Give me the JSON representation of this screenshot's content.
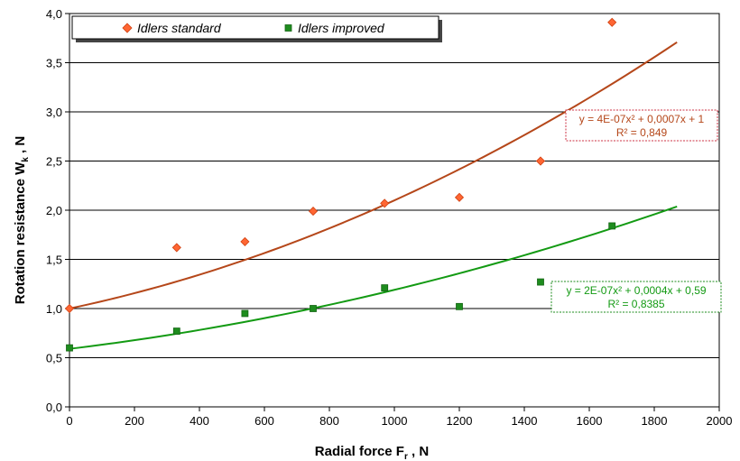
{
  "chart_data": {
    "type": "scatter",
    "xlabel_main": "Radial force F",
    "xlabel_sub": "r",
    "xlabel_tail": " , N",
    "ylabel_main": "Rotation resistance W",
    "ylabel_sub": "k",
    "ylabel_tail": " , N",
    "xlim": [
      0,
      2000
    ],
    "ylim": [
      0,
      4
    ],
    "x_ticks": [
      0,
      200,
      400,
      600,
      800,
      1000,
      1200,
      1400,
      1600,
      1800,
      2000
    ],
    "y_ticks": [
      {
        "value": 0,
        "label": "0,0"
      },
      {
        "value": 0.5,
        "label": "0,5"
      },
      {
        "value": 1,
        "label": "1,0"
      },
      {
        "value": 1.5,
        "label": "1,5"
      },
      {
        "value": 2,
        "label": "2,0"
      },
      {
        "value": 2.5,
        "label": "2,5"
      },
      {
        "value": 3,
        "label": "3,0"
      },
      {
        "value": 3.5,
        "label": "3,5"
      },
      {
        "value": 4,
        "label": "4,0"
      }
    ],
    "grid": "horizontal",
    "legend_position": "top-left",
    "series": [
      {
        "name": "Idlers standard",
        "marker": "diamond",
        "marker_color": "#ff6633",
        "marker_stroke": "#d04010",
        "x": [
          0,
          330,
          540,
          750,
          970,
          1200,
          1450,
          1670
        ],
        "y": [
          1.0,
          1.62,
          1.68,
          1.99,
          2.07,
          2.13,
          2.5,
          3.91
        ],
        "trend": {
          "type": "poly2",
          "a": 4e-07,
          "b": 0.0007,
          "c": 1,
          "x_range": [
            0,
            1870
          ],
          "color": "#b5471a",
          "equation": "y = 4E-07x² + 0,0007x + 1",
          "r2": "R² = 0,849",
          "box_border": "#cc3344"
        }
      },
      {
        "name": "Idlers improved",
        "marker": "square",
        "marker_color": "#1e8c1e",
        "marker_stroke": "#136413",
        "x": [
          0,
          330,
          540,
          750,
          970,
          1200,
          1450,
          1670
        ],
        "y": [
          0.6,
          0.77,
          0.95,
          1.0,
          1.21,
          1.02,
          1.27,
          1.84
        ],
        "trend": {
          "type": "poly2",
          "a": 2e-07,
          "b": 0.0004,
          "c": 0.59,
          "x_range": [
            0,
            1870
          ],
          "color": "#139a13",
          "equation": "y = 2E-07x² + 0,0004x + 0,59",
          "r2": "R² = 0,8385",
          "box_border": "#1e8c1e"
        }
      }
    ]
  }
}
